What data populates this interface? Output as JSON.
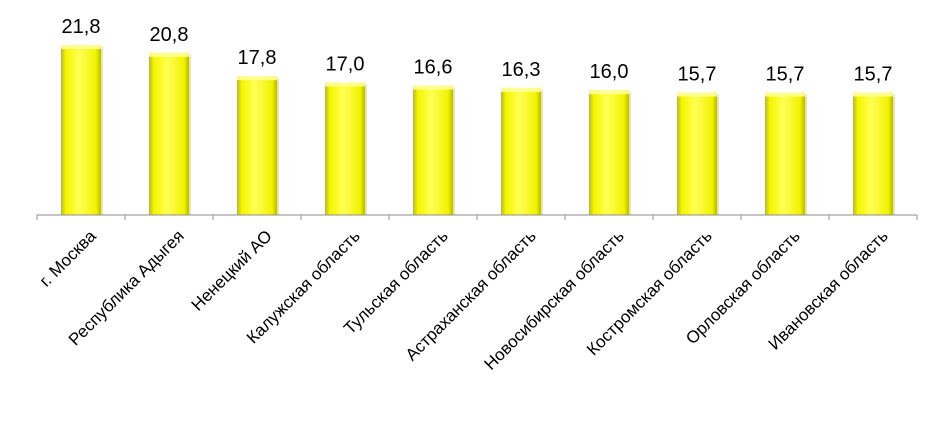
{
  "chart_data": {
    "type": "bar",
    "categories": [
      "г. Москва",
      "Республика Адыгея",
      "Ненецкий АО",
      "Калужская область",
      "Тульская область",
      "Астраханская область",
      "Новосибирская область",
      "Костромская область",
      "Орловская область",
      "Ивановская область"
    ],
    "values": [
      21.8,
      20.8,
      17.8,
      17.0,
      16.6,
      16.3,
      16.0,
      15.7,
      15.7,
      15.7
    ],
    "value_labels": [
      "21,8",
      "20,8",
      "17,8",
      "17,0",
      "16,6",
      "16,3",
      "16,0",
      "15,7",
      "15,7",
      "15,7"
    ],
    "title": "",
    "xlabel": "",
    "ylabel": "",
    "ylim": [
      0,
      22
    ],
    "grid": false,
    "legend": "none",
    "colors": {
      "bar_fill": "#ffff00",
      "bar_highlight": "#ffff9a",
      "bar_shade": "#cccc00",
      "axis": "#8c8c8c"
    }
  }
}
